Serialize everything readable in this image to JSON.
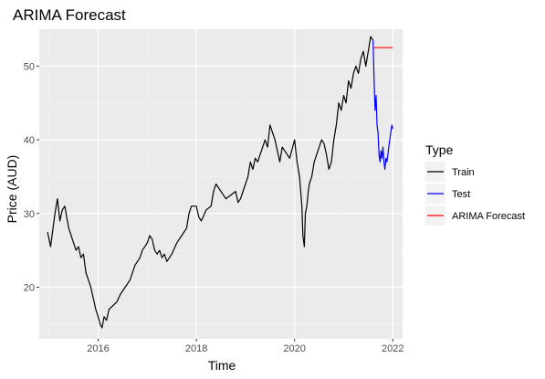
{
  "chart_data": {
    "type": "line",
    "title": "ARIMA Forecast",
    "xlabel": "Time",
    "ylabel": "Price (AUD)",
    "xlim": [
      2014.8,
      2022.2
    ],
    "ylim": [
      13,
      55
    ],
    "x_ticks": [
      2016,
      2018,
      2020,
      2022
    ],
    "x_tick_labels": [
      "2016",
      "2018",
      "2020",
      "2022"
    ],
    "y_ticks": [
      20,
      30,
      40,
      50
    ],
    "y_tick_labels": [
      "20",
      "30",
      "40",
      "50"
    ],
    "grid": true,
    "legend": {
      "title": "Type",
      "placement": "right",
      "entries": [
        {
          "name": "Train",
          "color": "#000000"
        },
        {
          "name": "Test",
          "color": "#0000ff"
        },
        {
          "name": "ARIMA Forecast",
          "color": "#ff0000"
        }
      ]
    },
    "series": [
      {
        "name": "Train",
        "color": "#000000",
        "x": [
          2014.97,
          2015.03,
          2015.08,
          2015.12,
          2015.17,
          2015.22,
          2015.27,
          2015.32,
          2015.36,
          2015.4,
          2015.45,
          2015.5,
          2015.55,
          2015.6,
          2015.65,
          2015.7,
          2015.75,
          2015.8,
          2015.85,
          2015.9,
          2015.95,
          2016.0,
          2016.04,
          2016.08,
          2016.12,
          2016.17,
          2016.22,
          2016.3,
          2016.38,
          2016.45,
          2016.5,
          2016.55,
          2016.6,
          2016.65,
          2016.7,
          2016.75,
          2016.8,
          2016.85,
          2016.9,
          2016.95,
          2017.0,
          2017.05,
          2017.1,
          2017.15,
          2017.2,
          2017.25,
          2017.3,
          2017.35,
          2017.4,
          2017.5,
          2017.6,
          2017.7,
          2017.8,
          2017.85,
          2017.9,
          2018.0,
          2018.05,
          2018.1,
          2018.2,
          2018.3,
          2018.35,
          2018.4,
          2018.5,
          2018.6,
          2018.7,
          2018.8,
          2018.85,
          2018.9,
          2019.0,
          2019.05,
          2019.1,
          2019.15,
          2019.2,
          2019.25,
          2019.3,
          2019.4,
          2019.45,
          2019.5,
          2019.55,
          2019.6,
          2019.7,
          2019.75,
          2019.8,
          2019.9,
          2020.0,
          2020.05,
          2020.1,
          2020.15,
          2020.17,
          2020.2,
          2020.22,
          2020.25,
          2020.28,
          2020.3,
          2020.35,
          2020.4,
          2020.45,
          2020.5,
          2020.55,
          2020.6,
          2020.65,
          2020.7,
          2020.75,
          2020.8,
          2020.85,
          2020.9,
          2020.95,
          2021.0,
          2021.05,
          2021.1,
          2021.15,
          2021.2,
          2021.25,
          2021.3,
          2021.35,
          2021.4,
          2021.45,
          2021.5,
          2021.55,
          2021.6
        ],
        "y": [
          27.5,
          25.5,
          28,
          30,
          32,
          29,
          30.5,
          31,
          29.5,
          28,
          27,
          26,
          25,
          25.5,
          24,
          24.5,
          22,
          21,
          20,
          18.5,
          17,
          16,
          15,
          14.5,
          16,
          15.5,
          17,
          17.5,
          18,
          19,
          19.5,
          20,
          20.5,
          21,
          22,
          23,
          23.5,
          24,
          25,
          25.5,
          26,
          27,
          26.5,
          25,
          24.5,
          25,
          24,
          24.5,
          23.5,
          24.5,
          26,
          27,
          28,
          30,
          31,
          31,
          29.5,
          29,
          30.5,
          31,
          33,
          34,
          33,
          32,
          32.5,
          33,
          31.5,
          32,
          34,
          35,
          37,
          36,
          37.5,
          37,
          38,
          40,
          39,
          42,
          41,
          40,
          37,
          39,
          38.5,
          37.5,
          40,
          37,
          35,
          31,
          27,
          25.5,
          30,
          31,
          33,
          34,
          35,
          37,
          38,
          39,
          40,
          39.5,
          38,
          36,
          37,
          40,
          42,
          45,
          44,
          46,
          45,
          48,
          47,
          49,
          50,
          49,
          51,
          52,
          50,
          52,
          54,
          53.5
        ]
      },
      {
        "name": "Test",
        "color": "#0000ff",
        "x": [
          2021.6,
          2021.62,
          2021.64,
          2021.66,
          2021.68,
          2021.7,
          2021.72,
          2021.74,
          2021.76,
          2021.78,
          2021.8,
          2021.82,
          2021.84,
          2021.86,
          2021.88,
          2021.9,
          2021.92,
          2021.94,
          2021.96,
          2021.98,
          2022.0
        ],
        "y": [
          53.5,
          48,
          44,
          46,
          42,
          41,
          38,
          37,
          38.5,
          37.5,
          39,
          37,
          36,
          37.5,
          37,
          38,
          39,
          40,
          41,
          42,
          41.5
        ]
      },
      {
        "name": "ARIMA Forecast",
        "color": "#ff0000",
        "x": [
          2021.6,
          2022.0
        ],
        "y": [
          52.5,
          52.5
        ]
      }
    ]
  }
}
